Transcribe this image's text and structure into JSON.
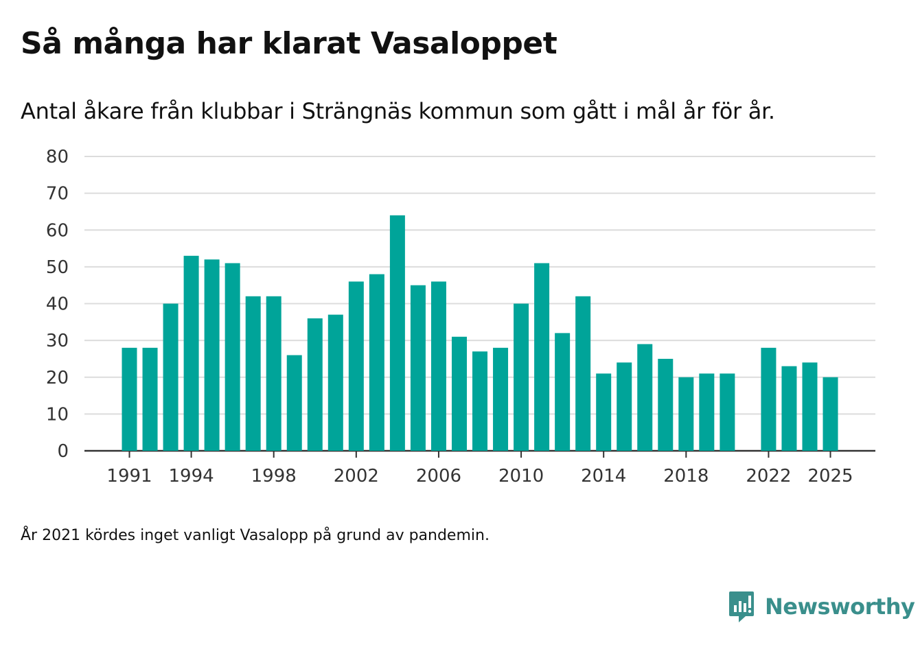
{
  "title": "Så många har klarat Vasaloppet",
  "subtitle": "Antal åkare från klubbar i Strängnäs kommun som gått i mål år för år.",
  "note": "År 2021 kördes inget vanligt Vasalopp på grund av pandemin.",
  "brand": {
    "name": "Newsworthy",
    "color": "#3a8f8c",
    "icon": "newsworthy-logo-icon"
  },
  "chart_data": {
    "type": "bar",
    "title": "Så många har klarat Vasaloppet",
    "subtitle": "Antal åkare från klubbar i Strängnäs kommun som gått i mål år för år.",
    "xlabel": "",
    "ylabel": "",
    "x": [
      1991,
      1992,
      1993,
      1994,
      1995,
      1996,
      1997,
      1998,
      1999,
      2000,
      2001,
      2002,
      2003,
      2004,
      2005,
      2006,
      2007,
      2008,
      2009,
      2010,
      2011,
      2012,
      2013,
      2014,
      2015,
      2016,
      2017,
      2018,
      2019,
      2020,
      2021,
      2022,
      2023,
      2024,
      2025
    ],
    "values": [
      28,
      28,
      40,
      53,
      52,
      51,
      42,
      42,
      26,
      36,
      37,
      46,
      48,
      64,
      45,
      46,
      31,
      27,
      28,
      40,
      51,
      32,
      42,
      21,
      24,
      29,
      25,
      20,
      21,
      21,
      null,
      28,
      23,
      24,
      20
    ],
    "x_ticks": [
      "1991",
      "1994",
      "1998",
      "2002",
      "2006",
      "2010",
      "2014",
      "2018",
      "2022",
      "2025"
    ],
    "y_ticks": [
      "0",
      "10",
      "20",
      "30",
      "40",
      "50",
      "60",
      "70",
      "80"
    ],
    "ylim": [
      0,
      80
    ],
    "grid": true,
    "bar_color": "#00a499"
  }
}
